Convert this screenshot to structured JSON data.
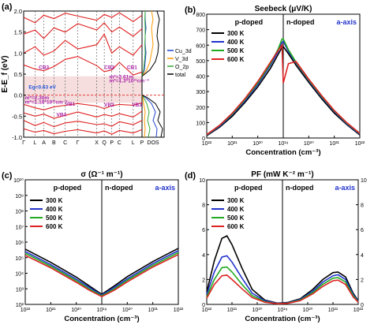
{
  "chart_data": [
    {
      "panel": "(a)",
      "type": "line",
      "title": "",
      "ylabel": "E-E_f (eV)",
      "xlabel": "",
      "ylim": [
        -1.0,
        2.0
      ],
      "yticks": [
        -1.0,
        -0.5,
        0.0,
        0.5,
        1.0,
        1.5,
        2.0
      ],
      "kpath_labels": [
        "Γ",
        "L",
        "A",
        "B",
        "C",
        "Γ",
        "X",
        "Q",
        "P",
        "C",
        "L",
        "P"
      ],
      "kpath_positions": [
        0,
        0.9,
        1.6,
        2.4,
        3.3,
        4.3,
        5.8,
        6.4,
        7.0,
        7.6,
        8.7,
        9.4
      ],
      "fermi_level": 0.0,
      "gap_window": [
        -0.18,
        0.45
      ],
      "bands": [
        {
          "name": "c1",
          "x": [
            0,
            0.9,
            1.6,
            2.4,
            3.3,
            4.3,
            5.8,
            6.4,
            7.0,
            7.6,
            8.7,
            9.4
          ],
          "y": [
            0.72,
            0.62,
            0.58,
            0.68,
            0.85,
            0.92,
            0.7,
            0.56,
            0.6,
            0.78,
            0.48,
            0.55
          ]
        },
        {
          "name": "c2",
          "x": [
            0,
            0.9,
            1.6,
            2.4,
            3.3,
            4.3,
            5.8,
            6.4,
            7.0,
            7.6,
            8.7,
            9.4
          ],
          "y": [
            1.0,
            1.15,
            0.95,
            1.05,
            1.3,
            1.1,
            1.2,
            1.45,
            1.0,
            1.15,
            0.95,
            1.2
          ]
        },
        {
          "name": "c3",
          "x": [
            0,
            0.9,
            1.6,
            2.4,
            3.3,
            4.3,
            5.8,
            6.4,
            7.0,
            7.6,
            8.7,
            9.4
          ],
          "y": [
            1.45,
            1.55,
            1.35,
            1.6,
            1.5,
            1.7,
            1.55,
            1.72,
            1.5,
            1.62,
            1.4,
            1.58
          ]
        },
        {
          "name": "c4",
          "x": [
            0,
            0.9,
            1.6,
            2.4,
            3.3,
            4.3,
            5.8,
            6.4,
            7.0,
            7.6,
            8.7,
            9.4
          ],
          "y": [
            1.85,
            1.72,
            1.9,
            1.82,
            1.95,
            1.88,
            1.78,
            1.92,
            1.85,
            1.96,
            1.75,
            1.9
          ]
        },
        {
          "name": "v1",
          "x": [
            0,
            0.9,
            1.6,
            2.4,
            3.3,
            4.3,
            5.8,
            6.4,
            7.0,
            7.6,
            8.7,
            9.4
          ],
          "y": [
            -0.22,
            -0.3,
            -0.35,
            -0.28,
            -0.24,
            -0.2,
            -0.26,
            -0.32,
            -0.25,
            -0.22,
            -0.24,
            -0.18
          ]
        },
        {
          "name": "v2",
          "x": [
            0,
            0.9,
            1.6,
            2.4,
            3.3,
            4.3,
            5.8,
            6.4,
            7.0,
            7.6,
            8.7,
            9.4
          ],
          "y": [
            -0.42,
            -0.5,
            -0.45,
            -0.55,
            -0.48,
            -0.4,
            -0.52,
            -0.46,
            -0.5,
            -0.44,
            -0.52,
            -0.38
          ]
        },
        {
          "name": "v3",
          "x": [
            0,
            0.9,
            1.6,
            2.4,
            3.3,
            4.3,
            5.8,
            6.4,
            7.0,
            7.6,
            8.7,
            9.4
          ],
          "y": [
            -0.6,
            -0.72,
            -0.65,
            -0.75,
            -0.66,
            -0.62,
            -0.7,
            -0.68,
            -0.74,
            -0.63,
            -0.7,
            -0.6
          ]
        },
        {
          "name": "v4",
          "x": [
            0,
            0.9,
            1.6,
            2.4,
            3.3,
            4.3,
            5.8,
            6.4,
            7.0,
            7.6,
            8.7,
            9.4
          ],
          "y": [
            -0.8,
            -0.88,
            -0.84,
            -0.92,
            -0.86,
            -0.82,
            -0.9,
            -0.85,
            -0.93,
            -0.84,
            -0.9,
            -0.82
          ]
        }
      ],
      "annotations": [
        {
          "text": "CB3",
          "x": 1.2,
          "y": 0.62,
          "color": "#aa22aa"
        },
        {
          "text": "Eg=0.63 eV",
          "x": 0.4,
          "y": 0.15,
          "color": "#2255dd"
        },
        {
          "text": "m*=2.30m",
          "x": 0.1,
          "y": -0.1,
          "color": "#aa22aa"
        },
        {
          "text": "m*=1.10*10³¹cm⁻³",
          "x": 0.1,
          "y": -0.2,
          "color": "#aa22aa"
        },
        {
          "text": "VB1",
          "x": 3.3,
          "y": -0.25,
          "color": "#aa22aa"
        },
        {
          "text": "VB4",
          "x": 2.6,
          "y": -0.5,
          "color": "#aa22aa"
        },
        {
          "text": "CB2",
          "x": 6.4,
          "y": 0.62,
          "color": "#aa22aa"
        },
        {
          "text": "m*=2.61m",
          "x": 6.8,
          "y": 0.4,
          "color": "#aa22aa"
        },
        {
          "text": "m*=1.3*10³¹cm⁻³",
          "x": 6.8,
          "y": 0.3,
          "color": "#aa22aa"
        },
        {
          "text": "CB1",
          "x": 8.2,
          "y": 0.62,
          "color": "#aa22aa"
        },
        {
          "text": "VB2",
          "x": 6.4,
          "y": -0.27,
          "color": "#aa22aa"
        },
        {
          "text": "VB3",
          "x": 8.6,
          "y": -0.27,
          "color": "#aa22aa"
        }
      ],
      "dos": {
        "xlabel": "DOS",
        "legend": [
          "Cu_3d",
          "V_3d",
          "O_2p",
          "total"
        ],
        "colors": [
          "#2244cc",
          "#ff9900",
          "#33aa33",
          "#000000"
        ],
        "energy": [
          -1.0,
          -0.8,
          -0.6,
          -0.4,
          -0.2,
          -0.05,
          0.0,
          0.2,
          0.45,
          0.6,
          0.8,
          1.0,
          1.2,
          1.4,
          1.6,
          1.8,
          2.0
        ],
        "series": [
          {
            "name": "Cu_3d",
            "values": [
              0.9,
              0.95,
              0.7,
              0.85,
              0.6,
              0.2,
              0.0,
              0.0,
              0.0,
              0.15,
              0.2,
              0.25,
              0.2,
              0.2,
              0.25,
              0.2,
              0.2
            ]
          },
          {
            "name": "V_3d",
            "values": [
              0.15,
              0.2,
              0.15,
              0.2,
              0.1,
              0.05,
              0.0,
              0.0,
              0.0,
              0.3,
              0.5,
              0.6,
              0.7,
              0.65,
              0.6,
              0.7,
              0.6
            ]
          },
          {
            "name": "O_2p",
            "values": [
              0.4,
              0.5,
              0.35,
              0.45,
              0.3,
              0.1,
              0.0,
              0.0,
              0.0,
              0.1,
              0.15,
              0.2,
              0.18,
              0.2,
              0.2,
              0.18,
              0.2
            ]
          },
          {
            "name": "total",
            "values": [
              1.2,
              1.3,
              1.0,
              1.15,
              0.85,
              0.3,
              0.0,
              0.0,
              0.0,
              0.5,
              0.85,
              1.0,
              1.05,
              0.95,
              1.0,
              1.1,
              0.95
            ]
          }
        ]
      }
    },
    {
      "panel": "(b)",
      "type": "line",
      "title": "Seebeck (μV/K)",
      "xlabel": "Concentration (cm⁻³)",
      "ylabel": "",
      "xscale": "mirrored-log",
      "ylim": [
        0,
        800
      ],
      "yticks": [
        0,
        100,
        200,
        300,
        400,
        500,
        600,
        700,
        800
      ],
      "xticks": [
        "10²²",
        "10²¹",
        "10²⁰",
        "10¹⁹",
        "10²⁰",
        "10²¹",
        "10²²"
      ],
      "region_labels": [
        "p-doped",
        "n-doped"
      ],
      "axis_label": "a-axis",
      "legend": [
        "300 K",
        "400 K",
        "500 K",
        "600 K"
      ],
      "colors": [
        "#000000",
        "#2233cc",
        "#22aa22",
        "#dd2222"
      ],
      "x_log": [
        -22.0,
        -21.5,
        -21.0,
        -20.5,
        -20.0,
        -19.5,
        -19.2,
        -19.05,
        19.0,
        19.2,
        19.5,
        20.0,
        20.5,
        21.0,
        21.5,
        22.0
      ],
      "series": [
        {
          "name": "300 K",
          "values": [
            15,
            70,
            140,
            230,
            330,
            450,
            540,
            585,
            590,
            545,
            470,
            360,
            255,
            160,
            85,
            20
          ]
        },
        {
          "name": "400 K",
          "values": [
            18,
            75,
            150,
            240,
            345,
            470,
            560,
            618,
            625,
            560,
            485,
            370,
            265,
            170,
            90,
            24
          ]
        },
        {
          "name": "500 K",
          "values": [
            20,
            80,
            155,
            248,
            355,
            480,
            575,
            640,
            640,
            570,
            490,
            375,
            270,
            175,
            95,
            28
          ]
        },
        {
          "name": "600 K",
          "values": [
            22,
            82,
            160,
            255,
            365,
            490,
            565,
            600,
            355,
            480,
            495,
            380,
            275,
            178,
            98,
            30
          ]
        }
      ]
    },
    {
      "panel": "(c)",
      "type": "line",
      "title": "σ (Ω⁻¹ m⁻¹)",
      "xlabel": "Concentration (cm⁻³)",
      "ylabel": "",
      "xscale": "mirrored-log",
      "yscale": "log",
      "ylim_log": [
        2,
        10
      ],
      "yticks": [
        "10²",
        "10³",
        "10⁴",
        "10⁵",
        "10⁶",
        "10⁷",
        "10⁸",
        "10⁹",
        "10¹⁰"
      ],
      "xticks": [
        "10²²",
        "10²¹",
        "10²⁰",
        "10¹⁹",
        "10²⁰",
        "10²¹",
        "10²²"
      ],
      "region_labels": [
        "p-doped",
        "n-doped"
      ],
      "axis_label": "a-axis",
      "legend": [
        "300 K",
        "400 K",
        "500 K",
        "600 K"
      ],
      "colors": [
        "#000000",
        "#2233cc",
        "#22aa22",
        "#dd2222"
      ],
      "x_log": [
        -22.0,
        -21.0,
        -20.0,
        -19.5,
        -19.0,
        19.0,
        19.5,
        20.0,
        21.0,
        22.0
      ],
      "series": [
        {
          "name": "300 K",
          "values": [
            5.55,
            4.7,
            3.75,
            3.2,
            2.65,
            2.65,
            3.2,
            3.78,
            4.75,
            5.6
          ]
        },
        {
          "name": "400 K",
          "values": [
            5.4,
            4.55,
            3.62,
            3.1,
            2.6,
            2.6,
            3.1,
            3.64,
            4.62,
            5.45
          ]
        },
        {
          "name": "500 K",
          "values": [
            5.28,
            4.45,
            3.52,
            3.0,
            2.55,
            2.55,
            3.0,
            3.55,
            4.5,
            5.32
          ]
        },
        {
          "name": "600 K",
          "values": [
            5.15,
            4.35,
            3.42,
            2.92,
            2.5,
            2.5,
            2.92,
            3.45,
            4.4,
            5.2
          ]
        }
      ]
    },
    {
      "panel": "(d)",
      "type": "line",
      "title": "PF (mW K⁻² m⁻¹)",
      "xlabel": "Concentration (cm⁻³)",
      "ylabel": "",
      "xscale": "mirrored-log",
      "ylim": [
        0,
        10
      ],
      "yticks": [
        0,
        2,
        4,
        6,
        8,
        10
      ],
      "xticks": [
        "10²²",
        "10²¹",
        "10²⁰",
        "10¹⁹",
        "10²⁰",
        "10²¹",
        "10²²"
      ],
      "region_labels": [
        "p-doped",
        "n-doped"
      ],
      "axis_label": "a-axis",
      "legend": [
        "300 K",
        "400 K",
        "500 K",
        "600 K"
      ],
      "colors": [
        "#000000",
        "#2233cc",
        "#22aa22",
        "#dd2222"
      ],
      "x_log": [
        -22.0,
        -21.7,
        -21.4,
        -21.2,
        -21.0,
        -20.6,
        -20.2,
        -19.7,
        -19.2,
        19.2,
        19.7,
        20.2,
        20.6,
        21.0,
        21.2,
        21.5,
        21.8,
        22.0
      ],
      "series": [
        {
          "name": "300 K",
          "values": [
            1.0,
            3.5,
            5.3,
            5.5,
            4.8,
            2.9,
            1.2,
            0.35,
            0.1,
            0.15,
            0.45,
            1.2,
            2.0,
            2.55,
            2.6,
            2.2,
            0.9,
            0.3
          ]
        },
        {
          "name": "400 K",
          "values": [
            0.8,
            2.6,
            3.8,
            3.9,
            3.4,
            2.1,
            0.9,
            0.3,
            0.08,
            0.12,
            0.4,
            1.05,
            1.8,
            2.3,
            2.38,
            2.0,
            0.8,
            0.25
          ]
        },
        {
          "name": "500 K",
          "values": [
            0.6,
            2.0,
            2.95,
            3.0,
            2.6,
            1.6,
            0.7,
            0.22,
            0.06,
            0.1,
            0.35,
            0.95,
            1.62,
            2.1,
            2.15,
            1.8,
            0.7,
            0.2
          ]
        },
        {
          "name": "600 K",
          "values": [
            0.5,
            1.6,
            2.3,
            2.35,
            2.0,
            1.25,
            0.55,
            0.18,
            0.05,
            0.08,
            0.3,
            0.85,
            1.45,
            1.9,
            1.95,
            1.6,
            0.6,
            0.18
          ]
        }
      ]
    }
  ]
}
